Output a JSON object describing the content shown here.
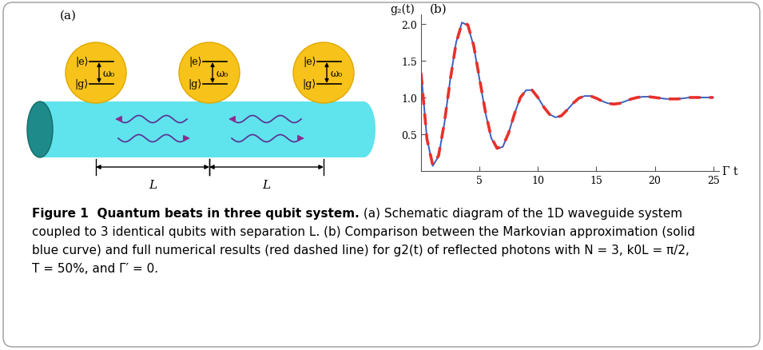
{
  "diagram": {
    "panel_label": "(a)",
    "qubits": [
      {
        "excited": "|e⟩",
        "ground": "|g⟩",
        "frequency": "ω₀"
      },
      {
        "excited": "|e⟩",
        "ground": "|g⟩",
        "frequency": "ω₀"
      },
      {
        "excited": "|e⟩",
        "ground": "|g⟩",
        "frequency": "ω₀"
      }
    ],
    "separations": [
      "L",
      "L"
    ]
  },
  "chart_data": {
    "type": "line",
    "panel_label": "(b)",
    "x_label": "Γ t",
    "y_label": "g₂(t)",
    "x": [
      0,
      0.5,
      1,
      1.5,
      2,
      2.5,
      3,
      3.5,
      4,
      4.5,
      5,
      5.5,
      6,
      6.5,
      7,
      7.5,
      8,
      8.5,
      9,
      9.5,
      10,
      10.5,
      11,
      11.5,
      12,
      12.5,
      13,
      13.5,
      14,
      14.5,
      15,
      15.5,
      16,
      16.5,
      17,
      17.5,
      18,
      18.5,
      19,
      19.5,
      20,
      20.5,
      21,
      21.5,
      22,
      22.5,
      23,
      23.5,
      24,
      24.5,
      25
    ],
    "series": [
      {
        "color": "#3b5fc0",
        "line_style": "solid",
        "values": [
          1.35,
          0.45,
          0.07,
          0.2,
          0.65,
          1.25,
          1.75,
          2.02,
          1.98,
          1.7,
          1.25,
          0.8,
          0.45,
          0.3,
          0.33,
          0.52,
          0.78,
          1.0,
          1.1,
          1.1,
          1.0,
          0.87,
          0.77,
          0.73,
          0.75,
          0.83,
          0.92,
          0.99,
          1.02,
          1.02,
          0.99,
          0.95,
          0.92,
          0.91,
          0.92,
          0.95,
          0.98,
          1.0,
          1.01,
          1.01,
          1.0,
          0.99,
          0.98,
          0.98,
          0.98,
          0.99,
          1.0,
          1.0,
          1.0,
          1.0,
          1.0
        ]
      },
      {
        "color": "#e8302a",
        "line_style": "dashed",
        "values": [
          1.33,
          0.44,
          0.08,
          0.21,
          0.66,
          1.24,
          1.74,
          2.01,
          1.99,
          1.71,
          1.26,
          0.81,
          0.46,
          0.31,
          0.34,
          0.52,
          0.78,
          1.0,
          1.1,
          1.1,
          1.0,
          0.87,
          0.77,
          0.73,
          0.75,
          0.83,
          0.92,
          0.99,
          1.02,
          1.02,
          0.99,
          0.95,
          0.92,
          0.91,
          0.92,
          0.95,
          0.98,
          1.0,
          1.01,
          1.01,
          1.0,
          0.99,
          0.98,
          0.98,
          0.98,
          0.99,
          1.0,
          1.0,
          1.0,
          1.0,
          1.0
        ]
      }
    ],
    "xlim": [
      0,
      25.5
    ],
    "ylim": [
      0,
      2.13
    ],
    "xticks": [
      5,
      10,
      15,
      20,
      25
    ],
    "yticks": [
      0.5,
      {
        "value": 1,
        "label": "1.0"
      },
      1.5,
      {
        "value": 2,
        "label": "2.0"
      }
    ],
    "grid": false
  },
  "caption": {
    "label": "Figure 1",
    "title": "Quantum beats in three qubit system.",
    "lines": [
      "(a) Schematic diagram of the 1D waveguide system",
      "coupled to 3 identical qubits with separation L. (b) Comparison between the Markovian approximation (solid",
      "blue curve) and full numerical results (red dashed line) for g2(t) of reflected photons with N = 3, k0L = π/2,",
      "T = 50%, and Γ′ = 0."
    ]
  }
}
